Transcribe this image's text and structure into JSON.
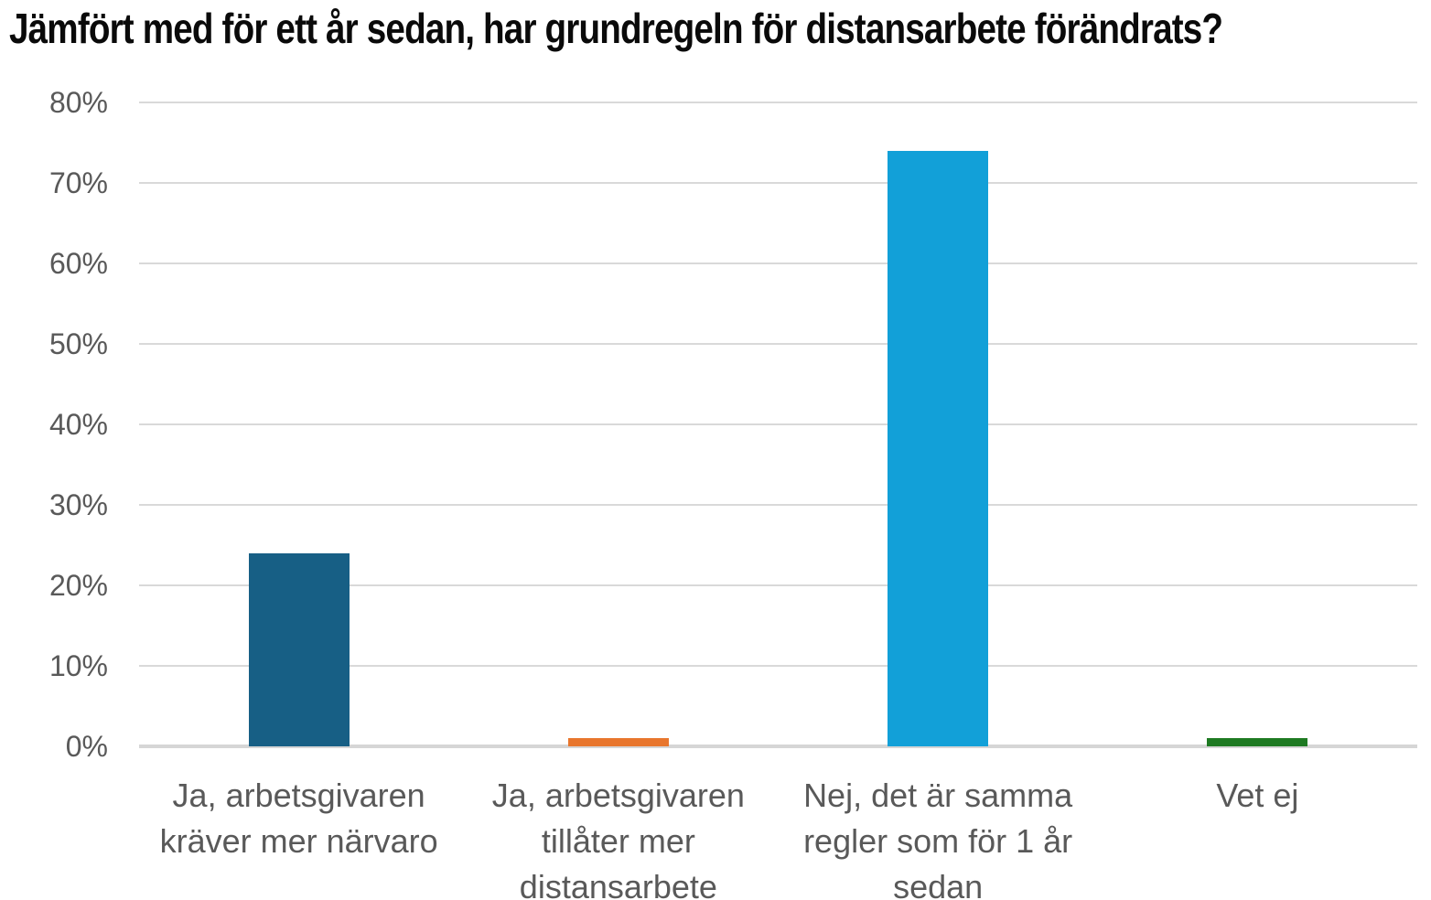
{
  "title": "Jämfört med för ett år sedan, har grundregeln för distansarbete förändrats?",
  "colors": {
    "background": "#ffffff",
    "title_text": "#0a0a0a",
    "axis_text": "#595959",
    "gridline": "#d9d9d9",
    "baseline": "#d6d6d6"
  },
  "chart_data": {
    "type": "bar",
    "title": "Jämfört med för ett år sedan, har grundregeln för distansarbete förändrats?",
    "categories": [
      "Ja, arbetsgivaren\nkräver mer närvaro",
      "Ja, arbetsgivaren\ntillåter mer\ndistansarbete",
      "Nej, det är samma\nregler som för 1 år\nsedan",
      "Vet ej"
    ],
    "values": [
      24,
      1,
      74,
      1
    ],
    "value_labels": [
      "24%",
      "1%",
      "74%",
      "1%"
    ],
    "bar_colors": [
      "#175f85",
      "#e8762d",
      "#12a0d8",
      "#1e7a22"
    ],
    "xlabel": "",
    "ylabel": "",
    "ylim": [
      0,
      80
    ],
    "ytick_step": 10,
    "ytick_labels": [
      "0%",
      "10%",
      "20%",
      "30%",
      "40%",
      "50%",
      "60%",
      "70%",
      "80%"
    ],
    "grid": true,
    "legend_position": "none"
  }
}
